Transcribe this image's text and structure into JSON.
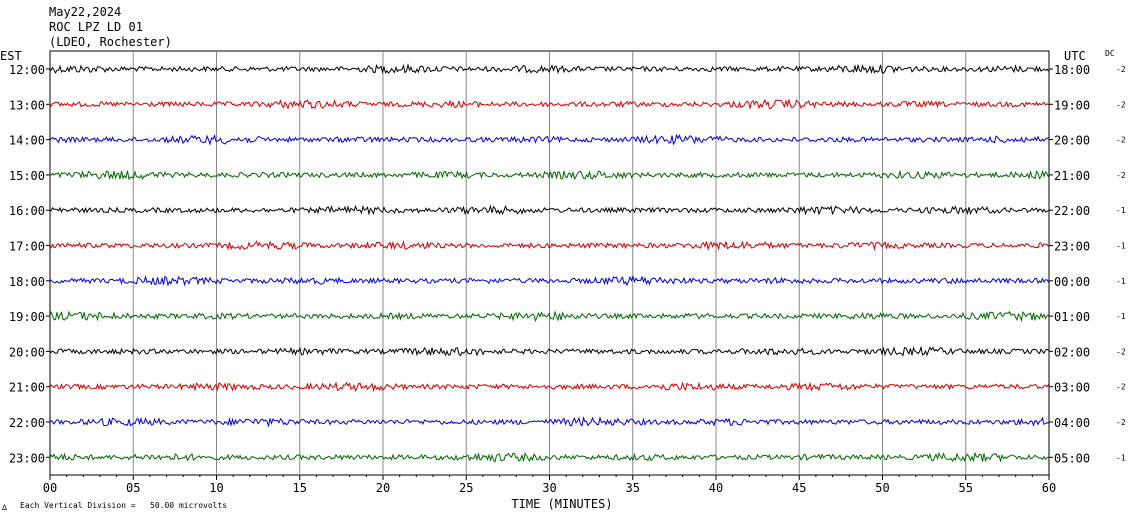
{
  "header": {
    "date": "May22,2024",
    "station": "ROC LPZ LD 01",
    "network": "(LDEO, Rochester)"
  },
  "left_axis_title": "EST",
  "right_axis_title": "UTC",
  "dc_title": "DC",
  "xlabel": "TIME (MINUTES)",
  "footer": {
    "icon": "∆",
    "scale": "Each Vertical Division =   50.00 microvolts"
  },
  "colors": {
    "black": "#000000",
    "red": "#cc0000",
    "blue": "#0000cc",
    "green": "#006600",
    "grid": "#888888"
  },
  "chart_data": {
    "type": "line",
    "title": "",
    "xlim": [
      0,
      60
    ],
    "x_ticks": [
      "00",
      "05",
      "10",
      "15",
      "20",
      "25",
      "30",
      "35",
      "40",
      "45",
      "50",
      "55",
      "60"
    ],
    "grid": true,
    "rows": [
      {
        "est": "12:00",
        "utc": "18:00",
        "dc": "-2",
        "color": "black"
      },
      {
        "est": "13:00",
        "utc": "19:00",
        "dc": "-2",
        "color": "red"
      },
      {
        "est": "14:00",
        "utc": "20:00",
        "dc": "-2",
        "color": "blue"
      },
      {
        "est": "15:00",
        "utc": "21:00",
        "dc": "-2",
        "color": "green"
      },
      {
        "est": "16:00",
        "utc": "22:00",
        "dc": "-1",
        "color": "black"
      },
      {
        "est": "17:00",
        "utc": "23:00",
        "dc": "-1",
        "color": "red"
      },
      {
        "est": "18:00",
        "utc": "00:00",
        "dc": "-1",
        "color": "blue"
      },
      {
        "est": "19:00",
        "utc": "01:00",
        "dc": "-1",
        "color": "green"
      },
      {
        "est": "20:00",
        "utc": "02:00",
        "dc": "-2",
        "color": "black"
      },
      {
        "est": "21:00",
        "utc": "03:00",
        "dc": "-2",
        "color": "red"
      },
      {
        "est": "22:00",
        "utc": "04:00",
        "dc": "-2",
        "color": "blue"
      },
      {
        "est": "23:00",
        "utc": "05:00",
        "dc": "-1",
        "color": "green"
      }
    ]
  }
}
